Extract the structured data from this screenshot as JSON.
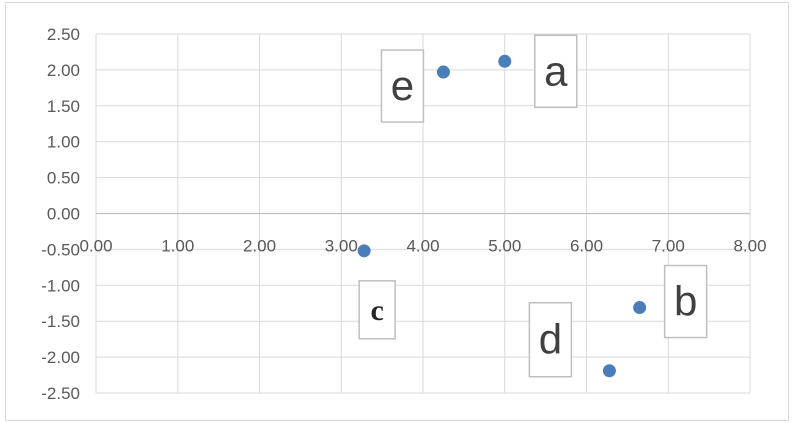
{
  "chart_data": {
    "type": "scatter",
    "title": "",
    "xlabel": "",
    "ylabel": "",
    "xlim": [
      0,
      8
    ],
    "ylim": [
      -2.5,
      2.5
    ],
    "x_ticks": [
      "0.00",
      "1.00",
      "2.00",
      "3.00",
      "4.00",
      "5.00",
      "6.00",
      "7.00",
      "8.00"
    ],
    "y_ticks": [
      "2.50",
      "2.00",
      "1.50",
      "1.00",
      "0.50",
      "0.00",
      "-0.50",
      "-1.00",
      "-1.50",
      "-2.00",
      "-2.50"
    ],
    "grid": true,
    "marker_color": "#4a7ebb",
    "points": [
      {
        "label": "a",
        "x": 5.0,
        "y": 2.12
      },
      {
        "label": "b",
        "x": 6.65,
        "y": -1.31
      },
      {
        "label": "c",
        "x": 3.28,
        "y": -0.52
      },
      {
        "label": "d",
        "x": 6.28,
        "y": -2.19
      },
      {
        "label": "e",
        "x": 4.25,
        "y": 1.97
      }
    ]
  }
}
